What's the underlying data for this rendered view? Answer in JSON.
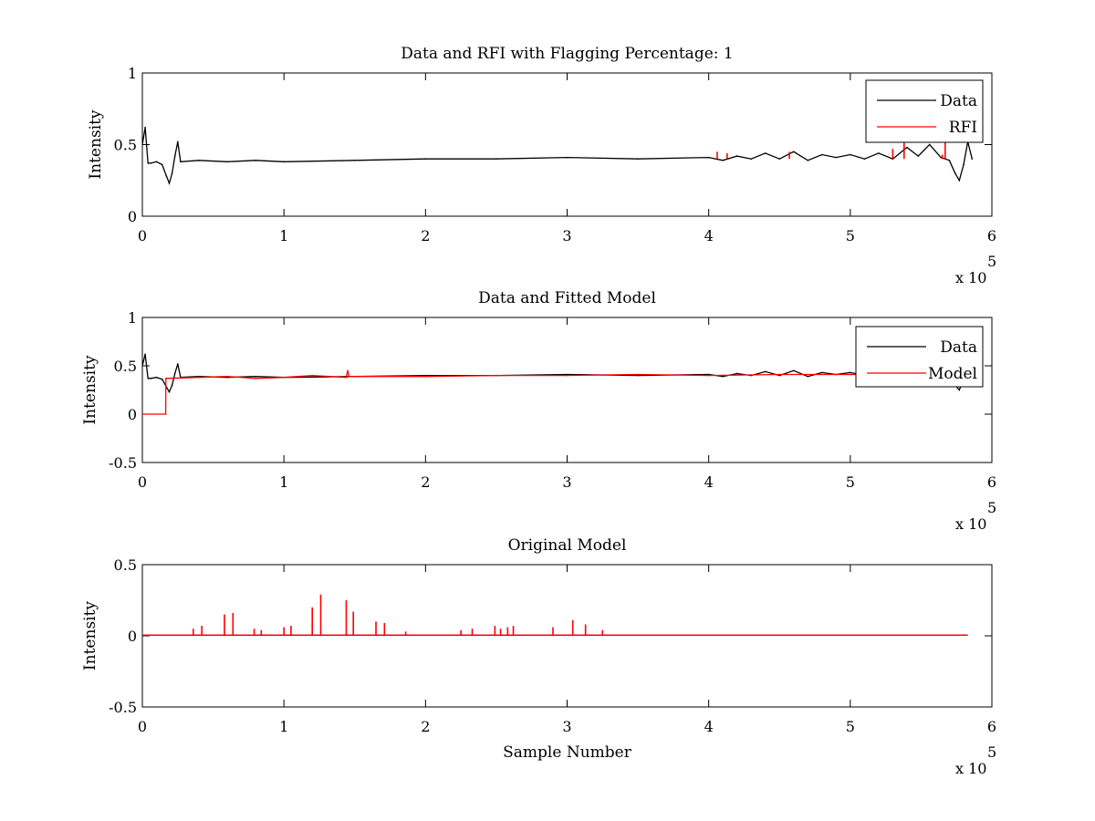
{
  "chart_data": [
    {
      "type": "line",
      "title": "Data and RFI with Flagging Percentage: 1",
      "xlabel": "",
      "ylabel": "Intensity",
      "xlim": [
        0,
        600000
      ],
      "ylim": [
        0,
        1
      ],
      "xticks": [
        0,
        100000,
        200000,
        300000,
        400000,
        500000,
        600000
      ],
      "xtick_labels": [
        "0",
        "1",
        "2",
        "3",
        "4",
        "5",
        "6"
      ],
      "yticks": [
        0,
        0.5,
        1
      ],
      "ytick_labels": [
        "0",
        "0.5",
        "1"
      ],
      "x_multiplier": {
        "base": "x 10",
        "exponent": "5"
      },
      "legend_position": "top-right",
      "series": [
        {
          "name": "Data",
          "color": "#000000",
          "x": [
            0,
            2000,
            4000,
            6000,
            10000,
            14000,
            17000,
            19000,
            21000,
            23000,
            25000,
            27000,
            40000,
            60000,
            80000,
            100000,
            150000,
            200000,
            250000,
            300000,
            350000,
            400000,
            410000,
            420000,
            430000,
            440000,
            450000,
            460000,
            470000,
            480000,
            490000,
            500000,
            510000,
            520000,
            530000,
            540000,
            548000,
            556000,
            564000,
            570000,
            574000,
            577000,
            580000,
            583000,
            586000
          ],
          "y": [
            0.5,
            0.62,
            0.37,
            0.37,
            0.38,
            0.36,
            0.28,
            0.23,
            0.3,
            0.42,
            0.52,
            0.38,
            0.39,
            0.38,
            0.39,
            0.38,
            0.39,
            0.4,
            0.4,
            0.41,
            0.4,
            0.41,
            0.39,
            0.42,
            0.4,
            0.44,
            0.4,
            0.45,
            0.39,
            0.43,
            0.41,
            0.43,
            0.4,
            0.44,
            0.4,
            0.48,
            0.42,
            0.5,
            0.41,
            0.39,
            0.3,
            0.25,
            0.36,
            0.52,
            0.4
          ]
        },
        {
          "name": "RFI",
          "color": "#ff0000",
          "spikes": [
            {
              "x": 406000,
              "y": 0.45
            },
            {
              "x": 413000,
              "y": 0.44
            },
            {
              "x": 457000,
              "y": 0.45
            },
            {
              "x": 530000,
              "y": 0.47
            },
            {
              "x": 538000,
              "y": 0.54
            },
            {
              "x": 565000,
              "y": 0.43
            },
            {
              "x": 567000,
              "y": 0.53
            }
          ]
        }
      ]
    },
    {
      "type": "line",
      "title": "Data and Fitted Model",
      "xlabel": "",
      "ylabel": "Intensity",
      "xlim": [
        0,
        600000
      ],
      "ylim": [
        -0.5,
        1
      ],
      "xticks": [
        0,
        100000,
        200000,
        300000,
        400000,
        500000,
        600000
      ],
      "xtick_labels": [
        "0",
        "1",
        "2",
        "3",
        "4",
        "5",
        "6"
      ],
      "yticks": [
        -0.5,
        0,
        0.5,
        1
      ],
      "ytick_labels": [
        "-0.5",
        "0",
        "0.5",
        "1"
      ],
      "x_multiplier": {
        "base": "x 10",
        "exponent": "5"
      },
      "legend_position": "top-right",
      "series": [
        {
          "name": "Data",
          "color": "#000000",
          "x": [
            0,
            2000,
            4000,
            6000,
            10000,
            14000,
            17000,
            19000,
            21000,
            23000,
            25000,
            27000,
            40000,
            60000,
            80000,
            100000,
            150000,
            200000,
            250000,
            300000,
            350000,
            400000,
            410000,
            420000,
            430000,
            440000,
            450000,
            460000,
            470000,
            480000,
            490000,
            500000,
            510000,
            520000,
            530000,
            540000,
            548000,
            556000,
            564000,
            570000,
            574000,
            577000,
            580000,
            583000,
            586000
          ],
          "y": [
            0.5,
            0.62,
            0.37,
            0.37,
            0.38,
            0.36,
            0.28,
            0.23,
            0.3,
            0.42,
            0.52,
            0.38,
            0.39,
            0.38,
            0.39,
            0.38,
            0.39,
            0.4,
            0.4,
            0.41,
            0.4,
            0.41,
            0.39,
            0.42,
            0.4,
            0.44,
            0.4,
            0.45,
            0.39,
            0.43,
            0.41,
            0.43,
            0.4,
            0.44,
            0.4,
            0.48,
            0.42,
            0.5,
            0.41,
            0.39,
            0.3,
            0.25,
            0.36,
            0.52,
            0.4
          ]
        },
        {
          "name": "Model",
          "color": "#ff0000",
          "x": [
            0,
            16500,
            16600,
            40000,
            60000,
            80000,
            100000,
            120000,
            144000,
            145000,
            146000,
            200000,
            250000,
            300000,
            350000,
            400000,
            450000,
            500000,
            540000
          ],
          "y": [
            0,
            0,
            0.37,
            0.38,
            0.39,
            0.37,
            0.38,
            0.4,
            0.38,
            0.45,
            0.39,
            0.39,
            0.4,
            0.4,
            0.41,
            0.4,
            0.41,
            0.41,
            0.4
          ]
        }
      ]
    },
    {
      "type": "line",
      "title": "Original Model",
      "xlabel": "Sample Number",
      "ylabel": "Intensity",
      "xlim": [
        0,
        600000
      ],
      "ylim": [
        -0.5,
        0.5
      ],
      "xticks": [
        0,
        100000,
        200000,
        300000,
        400000,
        500000,
        600000
      ],
      "xtick_labels": [
        "0",
        "1",
        "2",
        "3",
        "4",
        "5",
        "6"
      ],
      "yticks": [
        -0.5,
        0,
        0.5
      ],
      "ytick_labels": [
        "-0.5",
        "0",
        "0.5"
      ],
      "x_multiplier": {
        "base": "x 10",
        "exponent": "5"
      },
      "series": [
        {
          "color": "#ff0000",
          "baseline": 0.005,
          "x_end": 583000,
          "spikes": [
            {
              "x": 36000,
              "y": 0.05
            },
            {
              "x": 42000,
              "y": 0.07
            },
            {
              "x": 58000,
              "y": 0.15
            },
            {
              "x": 64000,
              "y": 0.16
            },
            {
              "x": 79000,
              "y": 0.05
            },
            {
              "x": 84000,
              "y": 0.04
            },
            {
              "x": 100000,
              "y": 0.06
            },
            {
              "x": 105000,
              "y": 0.07
            },
            {
              "x": 120000,
              "y": 0.2
            },
            {
              "x": 126000,
              "y": 0.29
            },
            {
              "x": 144000,
              "y": 0.25
            },
            {
              "x": 149000,
              "y": 0.17
            },
            {
              "x": 165000,
              "y": 0.1
            },
            {
              "x": 171000,
              "y": 0.09
            },
            {
              "x": 186000,
              "y": 0.03
            },
            {
              "x": 225000,
              "y": 0.04
            },
            {
              "x": 233000,
              "y": 0.05
            },
            {
              "x": 249000,
              "y": 0.07
            },
            {
              "x": 253000,
              "y": 0.05
            },
            {
              "x": 258000,
              "y": 0.06
            },
            {
              "x": 262000,
              "y": 0.07
            },
            {
              "x": 290000,
              "y": 0.06
            },
            {
              "x": 304000,
              "y": 0.11
            },
            {
              "x": 313000,
              "y": 0.08
            },
            {
              "x": 325000,
              "y": 0.04
            }
          ]
        }
      ]
    }
  ]
}
